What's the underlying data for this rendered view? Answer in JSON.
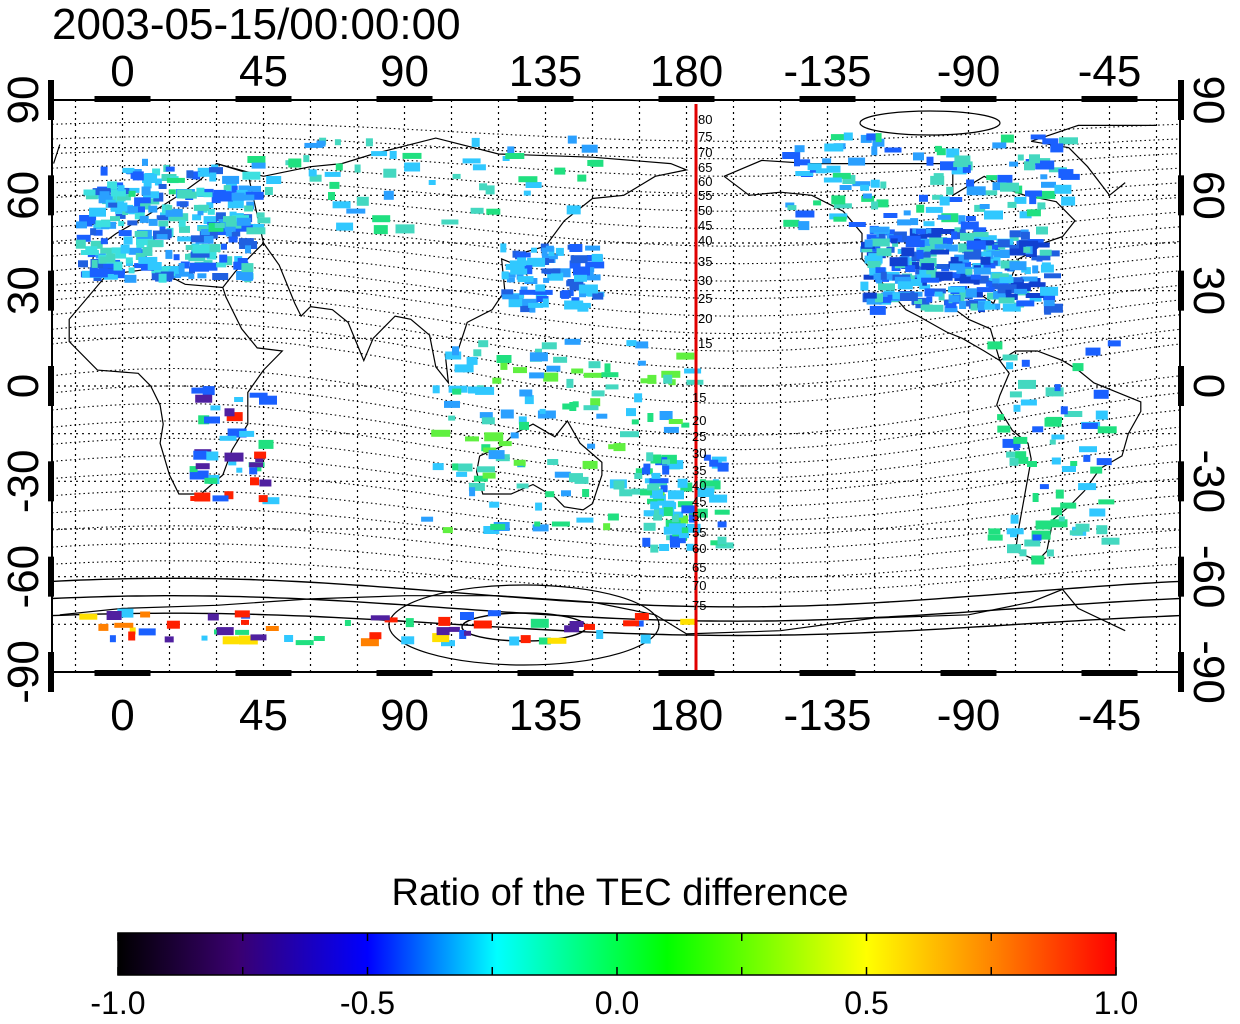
{
  "title": "2003-05-15/00:00:00",
  "map": {
    "top_x_ticks": [
      "0",
      "45",
      "90",
      "135",
      "180",
      "-135",
      "-90",
      "-45"
    ],
    "bottom_x_ticks": [
      "0",
      "45",
      "90",
      "135",
      "180",
      "-135",
      "-90",
      "-45"
    ],
    "left_y_ticks": [
      "90",
      "60",
      "30",
      "0",
      "-30",
      "-60",
      "-90"
    ],
    "right_y_ticks": [
      "90",
      "60",
      "30",
      "0",
      "-30",
      "-60",
      "-90"
    ],
    "meridian_line_longitude": 180,
    "meridian_line_color": "#e00000",
    "contour_labels_north": [
      "80",
      "75",
      "70",
      "65",
      "60",
      "55",
      "50",
      "45",
      "40",
      "35",
      "30",
      "25",
      "20",
      "15"
    ],
    "contour_labels_south": [
      "15",
      "20",
      "25",
      "30",
      "35",
      "40",
      "45",
      "50",
      "55",
      "60",
      "65",
      "70",
      "75"
    ]
  },
  "colorbar": {
    "title": "Ratio of the TEC difference",
    "tick_labels": [
      "-1.0",
      "-0.5",
      "0.0",
      "0.5",
      "1.0"
    ],
    "colors": [
      "#000000",
      "#400080",
      "#0000ff",
      "#00ffff",
      "#00ff00",
      "#ffff00",
      "#ff8000",
      "#ff0000"
    ]
  }
}
